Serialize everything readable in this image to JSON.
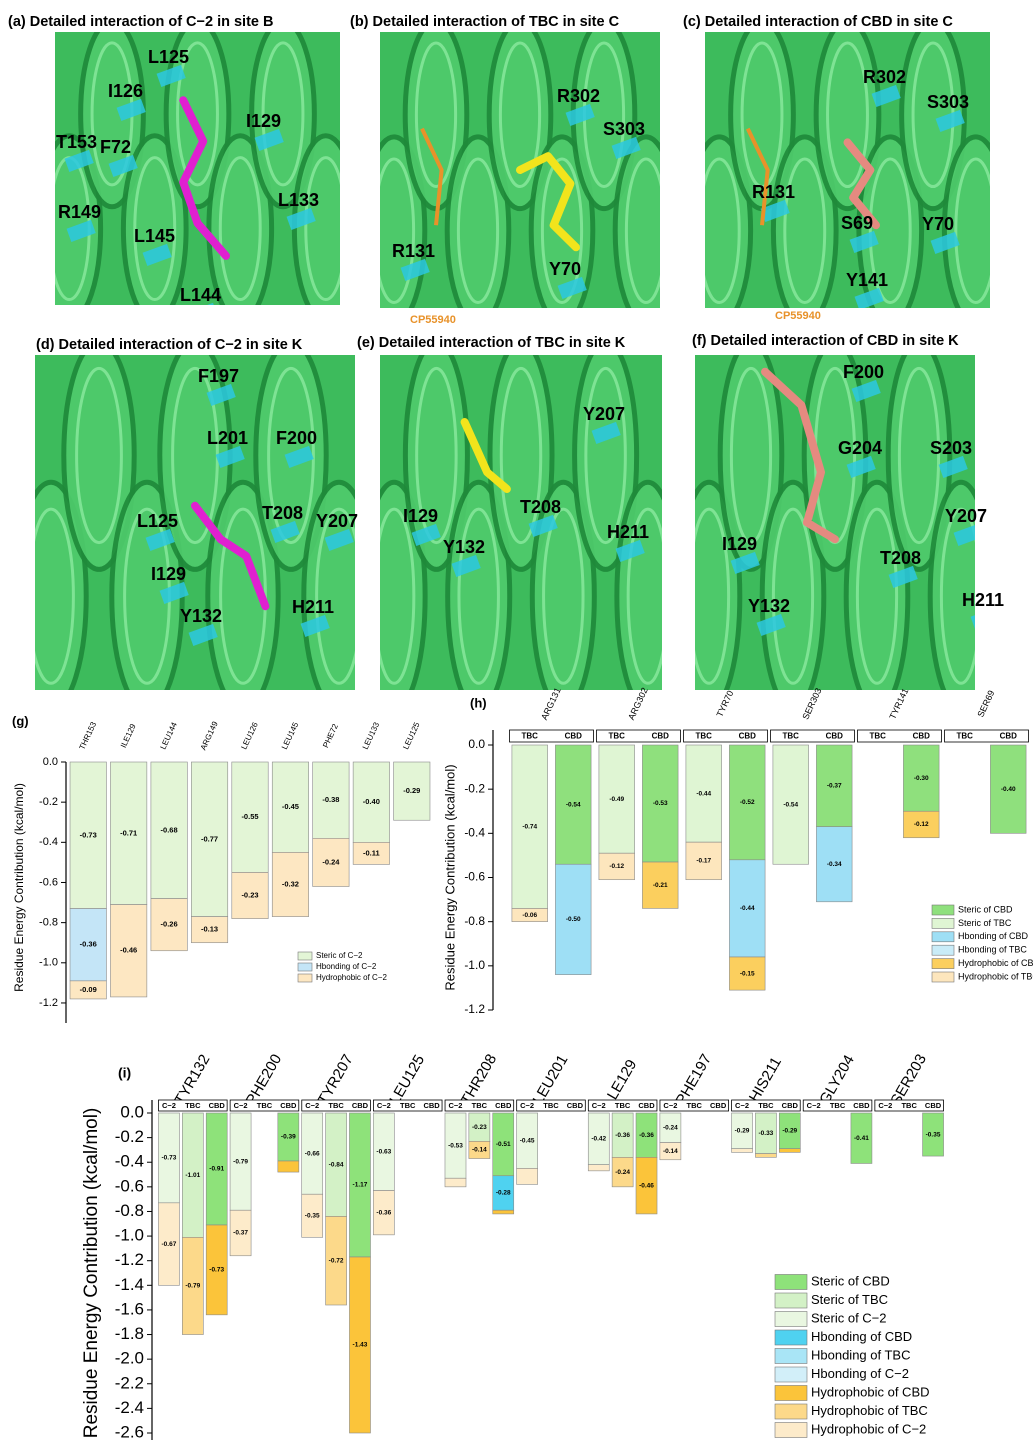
{
  "panels": [
    {
      "title": "(a) Detailed interaction of C−2 in site B",
      "labels": [
        "L125",
        "I126",
        "I129",
        "F72",
        "T153",
        "L133",
        "R149",
        "L145",
        "L144"
      ]
    },
    {
      "title": "(b) Detailed interaction of TBC in site C",
      "labels": [
        "R302",
        "S303",
        "R131",
        "Y70"
      ],
      "ligand_note": "CP55940"
    },
    {
      "title": "(c) Detailed interaction of CBD in site C",
      "labels": [
        "R302",
        "S303",
        "R131",
        "S69",
        "Y70",
        "Y141"
      ],
      "ligand_note": "CP55940"
    },
    {
      "title": "(d) Detailed interaction of C−2 in site K",
      "labels": [
        "F197",
        "L201",
        "F200",
        "T208",
        "Y207",
        "L125",
        "I129",
        "Y132",
        "H211"
      ]
    },
    {
      "title": "(e) Detailed interaction of TBC in site K",
      "labels": [
        "Y207",
        "T208",
        "I129",
        "H211",
        "Y132"
      ]
    },
    {
      "title": "(f) Detailed interaction of CBD in site K",
      "labels": [
        "F200",
        "G204",
        "S203",
        "Y207",
        "I129",
        "T208",
        "Y132",
        "H211"
      ]
    }
  ],
  "chart_data": [
    {
      "type": "stacked_bar",
      "panel": "(g)",
      "y_label": "Residue Energy Contribution (kcal/mol)",
      "categories": [
        "THR153",
        "ILE129",
        "LEU144",
        "ARG149",
        "LEU126",
        "LEU145",
        "PHE72",
        "LEU133",
        "LEU125"
      ],
      "ylim": [
        -1.25,
        0
      ],
      "yticks": [
        {
          "value": 0,
          "label": "0.0"
        },
        -0.2,
        -0.4,
        -0.6,
        -0.8,
        {
          "value": -1,
          "label": "-1.0"
        },
        -1.2
      ],
      "legend": "lower right",
      "series": [
        {
          "name": "Steric of C−2",
          "color": "#e3f5d6",
          "values": [
            -0.73,
            -0.71,
            -0.68,
            -0.77,
            -0.55,
            -0.45,
            -0.38,
            -0.4,
            -0.29
          ],
          "value_labels": [
            "-0.73",
            "-0.71",
            "-0.68",
            "-0.77",
            "-0.55",
            "-0.45",
            "-0.38",
            "-0.40",
            "-0.29"
          ]
        },
        {
          "name": "Hbonding of C−2",
          "color": "#c4e5f7",
          "values": [
            -0.36,
            null,
            null,
            null,
            null,
            null,
            null,
            null,
            null
          ],
          "value_labels": [
            "-0.36",
            null,
            null,
            null,
            null,
            null,
            null,
            null,
            null
          ]
        },
        {
          "name": "Hydrophobic of C−2",
          "color": "#fde7c2",
          "values": [
            -0.09,
            -0.46,
            -0.26,
            -0.13,
            -0.23,
            -0.32,
            -0.24,
            -0.11,
            null
          ],
          "value_labels": [
            "-0.09",
            "-0.46",
            "-0.26",
            "-0.13",
            "-0.23",
            "-0.32",
            "-0.24",
            "-0.11",
            null
          ]
        }
      ]
    },
    {
      "type": "stacked_bar",
      "panel": "(h)",
      "y_label": "Residue Energy Contribution (kcal/mol)",
      "categories": [
        "ARG131",
        "ARG302",
        "TYR70",
        "SER303",
        "TYR141",
        "SER69"
      ],
      "groups": [
        "TBC",
        "CBD"
      ],
      "ylim": [
        -1.2,
        0
      ],
      "yticks": [
        {
          "value": 0,
          "label": "0.0"
        },
        -0.2,
        -0.4,
        -0.6,
        -0.8,
        {
          "value": -1,
          "label": "-1.0"
        },
        -1.2
      ],
      "legend": "lower right",
      "series": [
        {
          "name": "Steric of CBD",
          "group": "CBD",
          "color": "#8fe07d",
          "values": [
            -0.54,
            -0.53,
            -0.52,
            -0.37,
            -0.3,
            -0.4
          ],
          "value_labels": [
            "-0.54",
            "-0.53",
            "-0.52",
            "-0.37",
            "-0.30",
            "-0.40"
          ]
        },
        {
          "name": "Steric of TBC",
          "group": "TBC",
          "color": "#dff5d3",
          "values": [
            -0.74,
            -0.49,
            -0.44,
            -0.54,
            null,
            null
          ],
          "value_labels": [
            "-0.74",
            "-0.49",
            "-0.44",
            "-0.54",
            null,
            null
          ]
        },
        {
          "name": "Hbonding of CBD",
          "group": "CBD",
          "color": "#9edff5",
          "values": [
            -0.5,
            null,
            -0.44,
            -0.34,
            null,
            null
          ],
          "value_labels": [
            "-0.50",
            null,
            "-0.44",
            "-0.34",
            null,
            null
          ]
        },
        {
          "name": "Hbonding of TBC",
          "group": "TBC",
          "color": "#c9ecf8",
          "values": [
            null,
            null,
            null,
            null,
            null,
            null
          ]
        },
        {
          "name": "Hydrophobic of CBD",
          "group": "CBD",
          "color": "#fbcf5e",
          "values": [
            null,
            -0.21,
            -0.15,
            null,
            -0.12,
            null
          ],
          "value_labels": [
            null,
            "-0.21",
            "-0.15",
            null,
            "-0.12",
            null
          ]
        },
        {
          "name": "Hydrophobic of TBC",
          "group": "TBC",
          "color": "#fde6bd",
          "values": [
            -0.06,
            -0.12,
            -0.17,
            null,
            null,
            null
          ],
          "value_labels": [
            "-0.06",
            "-0.12",
            "-0.17",
            null,
            null,
            null
          ]
        }
      ]
    },
    {
      "type": "stacked_bar",
      "panel": "(i)",
      "y_label": "Residue Energy Contribution (kcal/mol)",
      "categories": [
        "TYR132",
        "PHE200",
        "TYR207",
        "LEU125",
        "THR208",
        "LEU201",
        "LE129",
        "PHE197",
        "HIS211",
        "GLY204",
        "SER203"
      ],
      "groups": [
        "C−2",
        "TBC",
        "CBD"
      ],
      "ylim": [
        -2.6,
        0
      ],
      "yticks": [
        {
          "value": 0,
          "label": "0.0"
        },
        -0.2,
        -0.4,
        -0.6,
        -0.8,
        {
          "value": -1,
          "label": "-1.0"
        },
        -1.2,
        -1.4,
        -1.6,
        -1.8,
        {
          "value": -2,
          "label": "-2.0"
        },
        -2.2,
        -2.4,
        -2.6
      ],
      "legend": "lower right",
      "series": [
        {
          "name": "Steric of CBD",
          "group": "CBD",
          "color": "#8ee27a",
          "values": [
            -0.91,
            -0.39,
            -1.17,
            null,
            -0.51,
            null,
            -0.36,
            null,
            -0.29,
            -0.41,
            -0.35
          ],
          "value_labels": [
            "-0.91",
            "-0.39",
            "-1.17",
            null,
            "-0.51",
            null,
            "-0.36",
            null,
            "-0.29",
            "-0.41",
            "-0.35"
          ]
        },
        {
          "name": "Steric of TBC",
          "group": "TBC",
          "color": "#d3f1c6",
          "values": [
            -1.01,
            null,
            -0.84,
            null,
            -0.23,
            null,
            -0.36,
            null,
            -0.33,
            null,
            null
          ],
          "value_labels": [
            "-1.01",
            null,
            "-0.84",
            null,
            "-0.23",
            null,
            "-0.36",
            null,
            "-0.33",
            null,
            null
          ]
        },
        {
          "name": "Steric of C−2",
          "group": "C−2",
          "color": "#e9f7e1",
          "values": [
            -0.73,
            -0.79,
            -0.66,
            -0.63,
            -0.53,
            -0.45,
            -0.42,
            -0.24,
            -0.29,
            null,
            null
          ],
          "value_labels": [
            "-0.73",
            "-0.79",
            "-0.66",
            "-0.63",
            "-0.53",
            "-0.45",
            "-0.42",
            "-0.24",
            "-0.29",
            null,
            null
          ]
        },
        {
          "name": "Hbonding of CBD",
          "group": "CBD",
          "color": "#4fd2f0",
          "values": [
            null,
            null,
            null,
            null,
            -0.28,
            null,
            null,
            null,
            null,
            null,
            null
          ],
          "value_labels": [
            null,
            null,
            null,
            null,
            "-0.28",
            null,
            null,
            null,
            null,
            null,
            null
          ]
        },
        {
          "name": "Hbonding of TBC",
          "group": "TBC",
          "color": "#a9e5f6",
          "values": [
            null,
            null,
            null,
            null,
            null,
            null,
            null,
            null,
            null,
            null,
            null
          ]
        },
        {
          "name": "Hbonding of C−2",
          "group": "C−2",
          "color": "#d2eff9",
          "values": [
            null,
            null,
            null,
            null,
            null,
            null,
            null,
            null,
            null,
            null,
            null
          ]
        },
        {
          "name": "Hydrophobic of CBD",
          "group": "CBD",
          "color": "#fbc43a",
          "values": [
            -0.73,
            -0.09,
            -1.43,
            null,
            -0.03,
            null,
            -0.46,
            null,
            -0.03,
            null,
            null
          ],
          "value_labels": [
            "-0.73",
            null,
            "-1.43",
            null,
            null,
            null,
            "-0.46",
            null,
            null,
            null,
            null
          ]
        },
        {
          "name": "Hydrophobic of TBC",
          "group": "TBC",
          "color": "#fcd98a",
          "values": [
            -0.79,
            null,
            -0.72,
            null,
            -0.14,
            null,
            -0.24,
            null,
            -0.03,
            null,
            null
          ],
          "value_labels": [
            "-0.79",
            null,
            "-0.72",
            null,
            "-0.14",
            null,
            "-0.24",
            null,
            null,
            null,
            null
          ]
        },
        {
          "name": "Hydrophobic of C−2",
          "group": "C−2",
          "color": "#fdebca",
          "values": [
            -0.67,
            -0.37,
            -0.35,
            -0.36,
            -0.07,
            -0.13,
            -0.05,
            -0.14,
            -0.03,
            null,
            null
          ],
          "value_labels": [
            "-0.67",
            "-0.37",
            "-0.35",
            "-0.36",
            null,
            null,
            null,
            "-0.14",
            null,
            null,
            null
          ]
        }
      ]
    }
  ]
}
